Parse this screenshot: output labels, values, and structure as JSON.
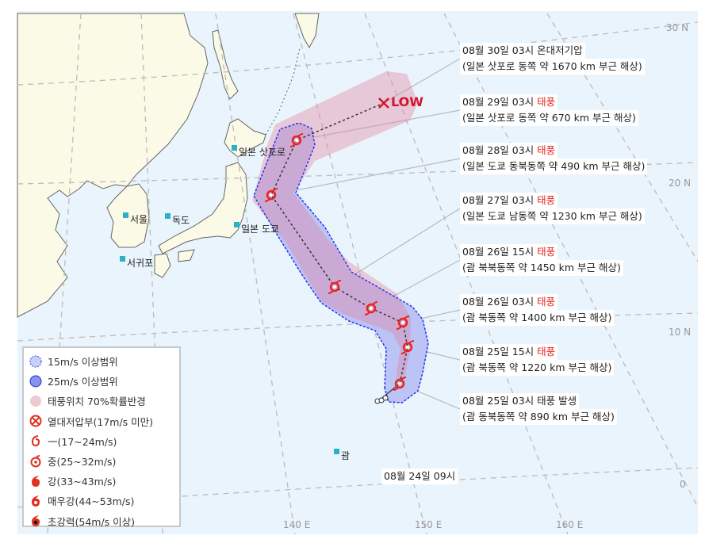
{
  "map": {
    "axes": {
      "lat": [
        "30 N",
        "20 N",
        "10 N",
        "0"
      ],
      "lon": [
        "140 E",
        "150 E",
        "160 E"
      ]
    },
    "places": [
      {
        "name": "일본 삿포로"
      },
      {
        "name": "서울"
      },
      {
        "name": "독도"
      },
      {
        "name": "일본 도쿄"
      },
      {
        "name": "서귀포"
      },
      {
        "name": "괌"
      }
    ],
    "low_marker": "LOW",
    "colors": {
      "sea": "#eaf4fd",
      "land": "#fbfae6",
      "area15": "#bcc4f6",
      "area25": "#9aa2f0",
      "prob70": "#ecc8d2",
      "typhoon": "#e8231e"
    },
    "track": [
      {
        "date": "08월 30일 03시",
        "status": "온대저기압",
        "status_red": false,
        "location": "(일본 삿포로 동쪽 약 1670 km 부근 해상)",
        "symbol": "x-icon"
      },
      {
        "date": "08월 29일 03시",
        "status": "태풍",
        "status_red": true,
        "location": "(일본 삿포로 동쪽 약 670 km 부근 해상)",
        "symbol": "typhoon-weak-icon"
      },
      {
        "date": "08월 28일 03시",
        "status": "태풍",
        "status_red": true,
        "location": "(일본 도쿄 동북동쪽 약 490 km 부근 해상)",
        "symbol": "typhoon-weak-icon"
      },
      {
        "date": "08월 27일 03시",
        "status": "태풍",
        "status_red": true,
        "location": "(일본 도쿄 남동쪽 약 1230 km 부근 해상)",
        "symbol": "typhoon-weak-icon"
      },
      {
        "date": "08월 26일 15시",
        "status": "태풍",
        "status_red": true,
        "location": "(괌 북북동쪽 약 1450 km 부근 해상)",
        "symbol": "typhoon-weak-icon"
      },
      {
        "date": "08월 26일 03시",
        "status": "태풍",
        "status_red": true,
        "location": "(괌 북동쪽 약 1400 km 부근 해상)",
        "symbol": "typhoon-weak-icon"
      },
      {
        "date": "08월 25일 15시",
        "status": "태풍",
        "status_red": true,
        "location": "(괌 북동쪽 약 1220 km 부근 해상)",
        "symbol": "typhoon-weak-icon"
      },
      {
        "date": "08월 25일 03시",
        "status": "태풍 발생",
        "status_red": false,
        "location": "(괌 동북동쪽 약 890 km 부근 해상)",
        "symbol": "typhoon-weak-icon"
      }
    ],
    "origin_label": "08월 24일 09시"
  },
  "legend": [
    {
      "label": "15m/s 이상범위",
      "icon": "area-15-icon"
    },
    {
      "label": "25m/s 이상범위",
      "icon": "area-25-icon"
    },
    {
      "label": "태풍위치 70%확률반경",
      "icon": "probability-radius-icon"
    },
    {
      "label": "열대저압부(17m/s 미만)",
      "icon": "tropical-depression-icon"
    },
    {
      "label": "一(17~24m/s)",
      "icon": "typhoon-weak-icon"
    },
    {
      "label": "중(25~32m/s)",
      "icon": "typhoon-medium-icon"
    },
    {
      "label": "강(33~43m/s)",
      "icon": "typhoon-strong-icon"
    },
    {
      "label": "매우강(44~53m/s)",
      "icon": "typhoon-very-strong-icon"
    },
    {
      "label": "초강력(54m/s 이상)",
      "icon": "typhoon-super-icon"
    }
  ]
}
